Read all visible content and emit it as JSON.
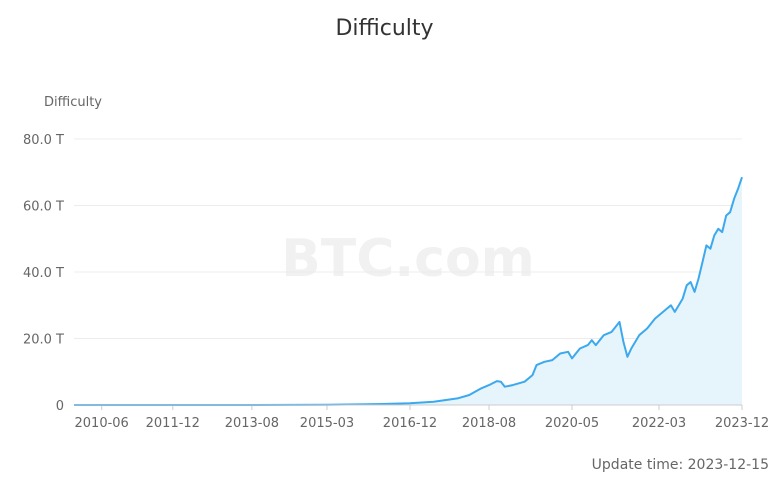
{
  "title": "Difficulty",
  "watermark": "BTC.com",
  "update_label": "Update time:",
  "update_date": "2023-12-15",
  "chart_data": {
    "type": "area",
    "title": "Difficulty",
    "ylabel": "Difficulty",
    "xlabel": "",
    "ylim": [
      0,
      80
    ],
    "y_unit": "T",
    "y_ticks": [
      {
        "value": 0,
        "label": "0"
      },
      {
        "value": 20,
        "label": "20.0 T"
      },
      {
        "value": 40,
        "label": "40.0 T"
      },
      {
        "value": 60,
        "label": "60.0 T"
      },
      {
        "value": 80,
        "label": "80.0 T"
      }
    ],
    "x_range": [
      "2009-11",
      "2023-12"
    ],
    "x_ticks": [
      "2010-06",
      "2011-12",
      "2013-08",
      "2015-03",
      "2016-12",
      "2018-08",
      "2020-05",
      "2022-03",
      "2023-12"
    ],
    "grid": true,
    "line_color": "#3ca9ee",
    "fill_color": "#e6f4fb",
    "x": [
      "2009-11",
      "2013-08",
      "2015-03",
      "2016-01",
      "2016-12",
      "2017-06",
      "2017-12",
      "2018-03",
      "2018-06",
      "2018-08",
      "2018-10",
      "2018-11",
      "2018-12",
      "2019-02",
      "2019-05",
      "2019-07",
      "2019-08",
      "2019-10",
      "2019-12",
      "2020-02",
      "2020-04",
      "2020-05",
      "2020-07",
      "2020-09",
      "2020-10",
      "2020-11",
      "2021-01",
      "2021-03",
      "2021-05",
      "2021-06",
      "2021-07",
      "2021-08",
      "2021-10",
      "2021-12",
      "2022-02",
      "2022-03",
      "2022-05",
      "2022-06",
      "2022-07",
      "2022-09",
      "2022-10",
      "2022-11",
      "2022-12",
      "2023-01",
      "2023-02",
      "2023-03",
      "2023-04",
      "2023-05",
      "2023-06",
      "2023-07",
      "2023-08",
      "2023-09",
      "2023-10",
      "2023-11",
      "2023-12"
    ],
    "values": [
      0,
      0,
      0.05,
      0.2,
      0.5,
      1,
      2,
      3,
      5,
      6,
      7.2,
      7,
      5.5,
      6,
      7,
      9,
      12,
      13,
      13.5,
      15.5,
      16,
      14,
      17,
      18,
      19.5,
      18,
      21,
      22,
      25,
      19,
      14.5,
      17,
      21,
      23,
      26,
      27,
      29,
      30,
      28,
      32,
      36,
      37,
      34,
      38,
      43,
      48,
      47,
      51,
      53,
      52,
      57,
      58,
      62,
      65,
      68.5
    ]
  }
}
